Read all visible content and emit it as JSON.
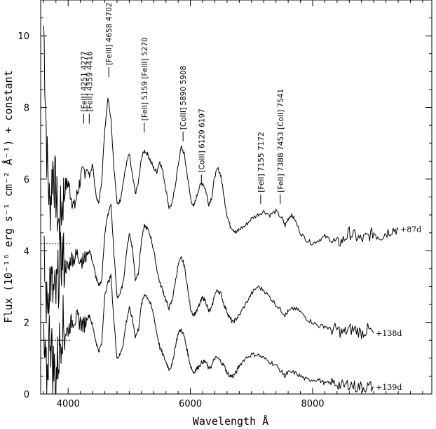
{
  "chart_data": {
    "type": "line",
    "title": "",
    "xlabel": "Wavelength Å",
    "ylabel": "Flux (10⁻¹⁶ erg s⁻¹ cm⁻² Å⁻¹) + constant",
    "xlim": [
      3550,
      9950
    ],
    "ylim": [
      0,
      11
    ],
    "x_ticks": [
      4000,
      6000,
      8000
    ],
    "y_ticks": [
      0,
      2,
      4,
      6,
      8,
      10
    ],
    "grid": false,
    "legend": "none",
    "series": [
      {
        "name": "+87d",
        "x": [
          3600,
          3650,
          3700,
          3750,
          3800,
          3850,
          3900,
          3950,
          4000,
          4050,
          4100,
          4150,
          4200,
          4250,
          4300,
          4350,
          4400,
          4450,
          4500,
          4550,
          4600,
          4650,
          4700,
          4750,
          4800,
          4850,
          4900,
          4950,
          5000,
          5050,
          5100,
          5150,
          5200,
          5250,
          5300,
          5350,
          5400,
          5450,
          5500,
          5550,
          5600,
          5650,
          5700,
          5750,
          5800,
          5850,
          5900,
          5950,
          6000,
          6050,
          6100,
          6150,
          6200,
          6250,
          6300,
          6350,
          6400,
          6450,
          6500,
          6550,
          6600,
          6650,
          6700,
          6750,
          6800,
          6900,
          7000,
          7100,
          7200,
          7300,
          7400,
          7500,
          7550,
          7600,
          7650,
          7700,
          7800,
          7900,
          8000,
          8100,
          8200,
          8300,
          8400,
          8500,
          8600,
          8700,
          8800,
          8900,
          9000,
          9100,
          9200,
          9300,
          9400
        ],
        "y": [
          10.3,
          6.8,
          5.1,
          6.4,
          5.6,
          4.6,
          5.3,
          5.8,
          5.9,
          5.5,
          5.2,
          5.6,
          6.0,
          6.2,
          6.3,
          6.1,
          6.4,
          5.6,
          5.3,
          6.0,
          7.4,
          8.3,
          7.7,
          6.3,
          5.3,
          5.4,
          5.9,
          6.4,
          6.7,
          6.1,
          5.6,
          5.9,
          6.6,
          6.8,
          6.7,
          6.5,
          6.3,
          6.2,
          6.5,
          6.2,
          5.7,
          5.2,
          5.3,
          5.8,
          6.4,
          6.9,
          6.7,
          6.1,
          5.5,
          5.2,
          5.5,
          5.8,
          5.9,
          5.7,
          5.3,
          5.5,
          6.1,
          6.3,
          6.1,
          5.5,
          5.0,
          4.7,
          4.6,
          4.5,
          4.6,
          4.7,
          4.9,
          5.0,
          5.1,
          5.0,
          5.1,
          4.9,
          4.7,
          4.9,
          5.0,
          4.9,
          4.5,
          4.3,
          4.2,
          4.3,
          4.4,
          4.3,
          4.2,
          4.3,
          4.5,
          4.4,
          4.3,
          4.4,
          4.5,
          4.4,
          4.5,
          4.6,
          4.6
        ]
      },
      {
        "name": "+138d",
        "x": [
          3600,
          3650,
          3700,
          3750,
          3800,
          3850,
          3900,
          3950,
          4000,
          4050,
          4100,
          4150,
          4200,
          4250,
          4300,
          4350,
          4400,
          4450,
          4500,
          4550,
          4600,
          4650,
          4700,
          4750,
          4800,
          4850,
          4900,
          4950,
          5000,
          5050,
          5100,
          5150,
          5200,
          5250,
          5300,
          5350,
          5400,
          5450,
          5500,
          5550,
          5600,
          5650,
          5700,
          5750,
          5800,
          5850,
          5900,
          5950,
          6000,
          6050,
          6100,
          6150,
          6200,
          6250,
          6300,
          6350,
          6400,
          6450,
          6500,
          6550,
          6600,
          6650,
          6700,
          6750,
          6800,
          6900,
          7000,
          7100,
          7200,
          7300,
          7400,
          7500,
          7550,
          7600,
          7700,
          7800,
          7900,
          8000,
          8100,
          8200,
          8300,
          8400,
          8500,
          8600,
          8700,
          8800,
          8900,
          9000
        ],
        "y": [
          3.8,
          2.4,
          3.3,
          2.8,
          2.7,
          3.4,
          3.9,
          3.6,
          3.5,
          3.8,
          3.8,
          3.9,
          3.8,
          3.7,
          3.9,
          4.0,
          3.7,
          3.3,
          3.0,
          3.2,
          4.5,
          5.0,
          5.3,
          3.9,
          2.7,
          2.8,
          3.1,
          3.9,
          4.5,
          4.1,
          3.2,
          3.4,
          4.3,
          4.7,
          4.6,
          4.4,
          4.0,
          3.5,
          3.1,
          2.9,
          2.6,
          2.4,
          2.6,
          3.1,
          3.6,
          3.8,
          3.6,
          3.0,
          2.4,
          2.2,
          2.3,
          2.5,
          2.7,
          2.6,
          2.3,
          2.4,
          2.8,
          2.9,
          2.8,
          2.5,
          2.3,
          2.1,
          2.0,
          2.1,
          2.2,
          2.5,
          2.8,
          3.0,
          2.9,
          2.7,
          2.5,
          2.3,
          2.2,
          2.3,
          2.4,
          2.3,
          2.1,
          2.0,
          1.9,
          1.9,
          1.8,
          1.8,
          1.7,
          1.8,
          1.8,
          1.7,
          1.8,
          1.7
        ]
      },
      {
        "name": "+139d",
        "x": [
          3600,
          3650,
          3700,
          3750,
          3800,
          3850,
          3900,
          3950,
          4000,
          4050,
          4100,
          4150,
          4200,
          4250,
          4300,
          4350,
          4400,
          4450,
          4500,
          4550,
          4600,
          4650,
          4700,
          4750,
          4800,
          4850,
          4900,
          4950,
          5000,
          5050,
          5100,
          5150,
          5200,
          5250,
          5300,
          5350,
          5400,
          5450,
          5500,
          5550,
          5600,
          5650,
          5700,
          5750,
          5800,
          5850,
          5900,
          5950,
          6000,
          6050,
          6100,
          6150,
          6200,
          6250,
          6300,
          6350,
          6400,
          6450,
          6500,
          6550,
          6600,
          6650,
          6700,
          6750,
          6800,
          6900,
          7000,
          7100,
          7200,
          7300,
          7400,
          7500,
          7550,
          7600,
          7700,
          7800,
          7900,
          8000,
          8100,
          8200,
          8300,
          8400,
          8500,
          8600,
          8700,
          8800,
          8900,
          9000
        ],
        "y": [
          1.2,
          0.3,
          1.9,
          0.8,
          0.5,
          1.2,
          2.0,
          1.7,
          1.8,
          2.0,
          2.1,
          2.1,
          2.0,
          1.9,
          2.1,
          2.2,
          1.9,
          1.5,
          1.2,
          1.4,
          2.8,
          3.1,
          3.3,
          2.0,
          1.0,
          1.1,
          1.4,
          2.0,
          2.4,
          2.1,
          1.6,
          1.8,
          2.5,
          2.8,
          2.7,
          2.5,
          2.2,
          1.7,
          1.3,
          1.1,
          0.9,
          0.7,
          0.8,
          1.3,
          1.7,
          1.8,
          1.6,
          1.2,
          0.8,
          0.6,
          0.7,
          0.8,
          0.9,
          0.9,
          0.7,
          0.8,
          1.0,
          1.0,
          0.9,
          0.8,
          0.6,
          0.5,
          0.5,
          0.6,
          0.8,
          1.0,
          1.1,
          1.1,
          1.0,
          0.9,
          0.8,
          0.6,
          0.5,
          0.6,
          0.6,
          0.5,
          0.4,
          0.4,
          0.4,
          0.3,
          0.3,
          0.3,
          0.2,
          0.3,
          0.2,
          0.2,
          0.2,
          0.2
        ]
      }
    ],
    "zero_levels": [
      4.2,
      1.5
    ],
    "line_ids": [
      {
        "label": "[FeII] 4251 4277",
        "x": 4255,
        "y": 7.55
      },
      {
        "label": "[FeII] 4359 4416",
        "x": 4345,
        "y": 7.55
      },
      {
        "label": "[FeIII] 4658 4702",
        "x": 4665,
        "y": 8.85
      },
      {
        "label": "[FeII] 5159 [FeIII] 5270",
        "x": 5245,
        "y": 7.3
      },
      {
        "label": "[CoIII] 5890 5908",
        "x": 5880,
        "y": 7.05
      },
      {
        "label": "[CoIII] 6129 6197",
        "x": 6180,
        "y": 5.85
      },
      {
        "label": "[FeII] 7155 7172",
        "x": 7150,
        "y": 5.3
      },
      {
        "label": "[FeII] 7388 7453 [CoII] 7541",
        "x": 7470,
        "y": 5.3
      }
    ]
  }
}
